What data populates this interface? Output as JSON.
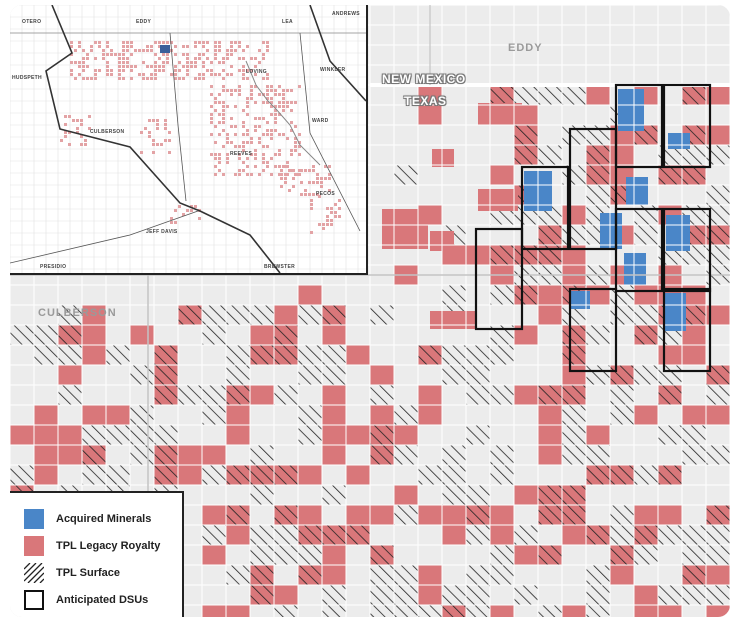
{
  "counties": {
    "eddy": "EDDY",
    "culberson": "CULBERSON"
  },
  "states": {
    "new_mexico": "NEW MEXICO",
    "texas": "TEXAS"
  },
  "inset": {
    "labels": {
      "otero": "OTERO",
      "eddy": "EDDY",
      "lea": "LEA",
      "andrews": "ANDREWS",
      "winkler": "WINKLER",
      "loving": "LOVING",
      "hudspeth": "HUDSPETH",
      "culberson": "CULBERSON",
      "ward": "WARD",
      "reeves": "REEVES",
      "pecos": "PECOS",
      "jeff_davis": "JEFF DAVIS",
      "presidio": "PRESIDIO",
      "brewster": "BREWSTER"
    }
  },
  "legend": {
    "items": [
      {
        "label": "Acquired Minerals",
        "color": "#4a86c8",
        "style": "fill"
      },
      {
        "label": "TPL Legacy Royalty",
        "color": "#d9777a",
        "style": "fill"
      },
      {
        "label": "TPL Surface",
        "color": "#222222",
        "style": "hatch"
      },
      {
        "label": "Anticipated DSUs",
        "color": "#111111",
        "style": "outline"
      }
    ]
  },
  "colors": {
    "background": "#ececec",
    "grid_line": "#ffffff",
    "royalty": "#d9777a",
    "acquired": "#4a86c8",
    "hatch": "#222222",
    "dsu_outline": "#111111"
  }
}
